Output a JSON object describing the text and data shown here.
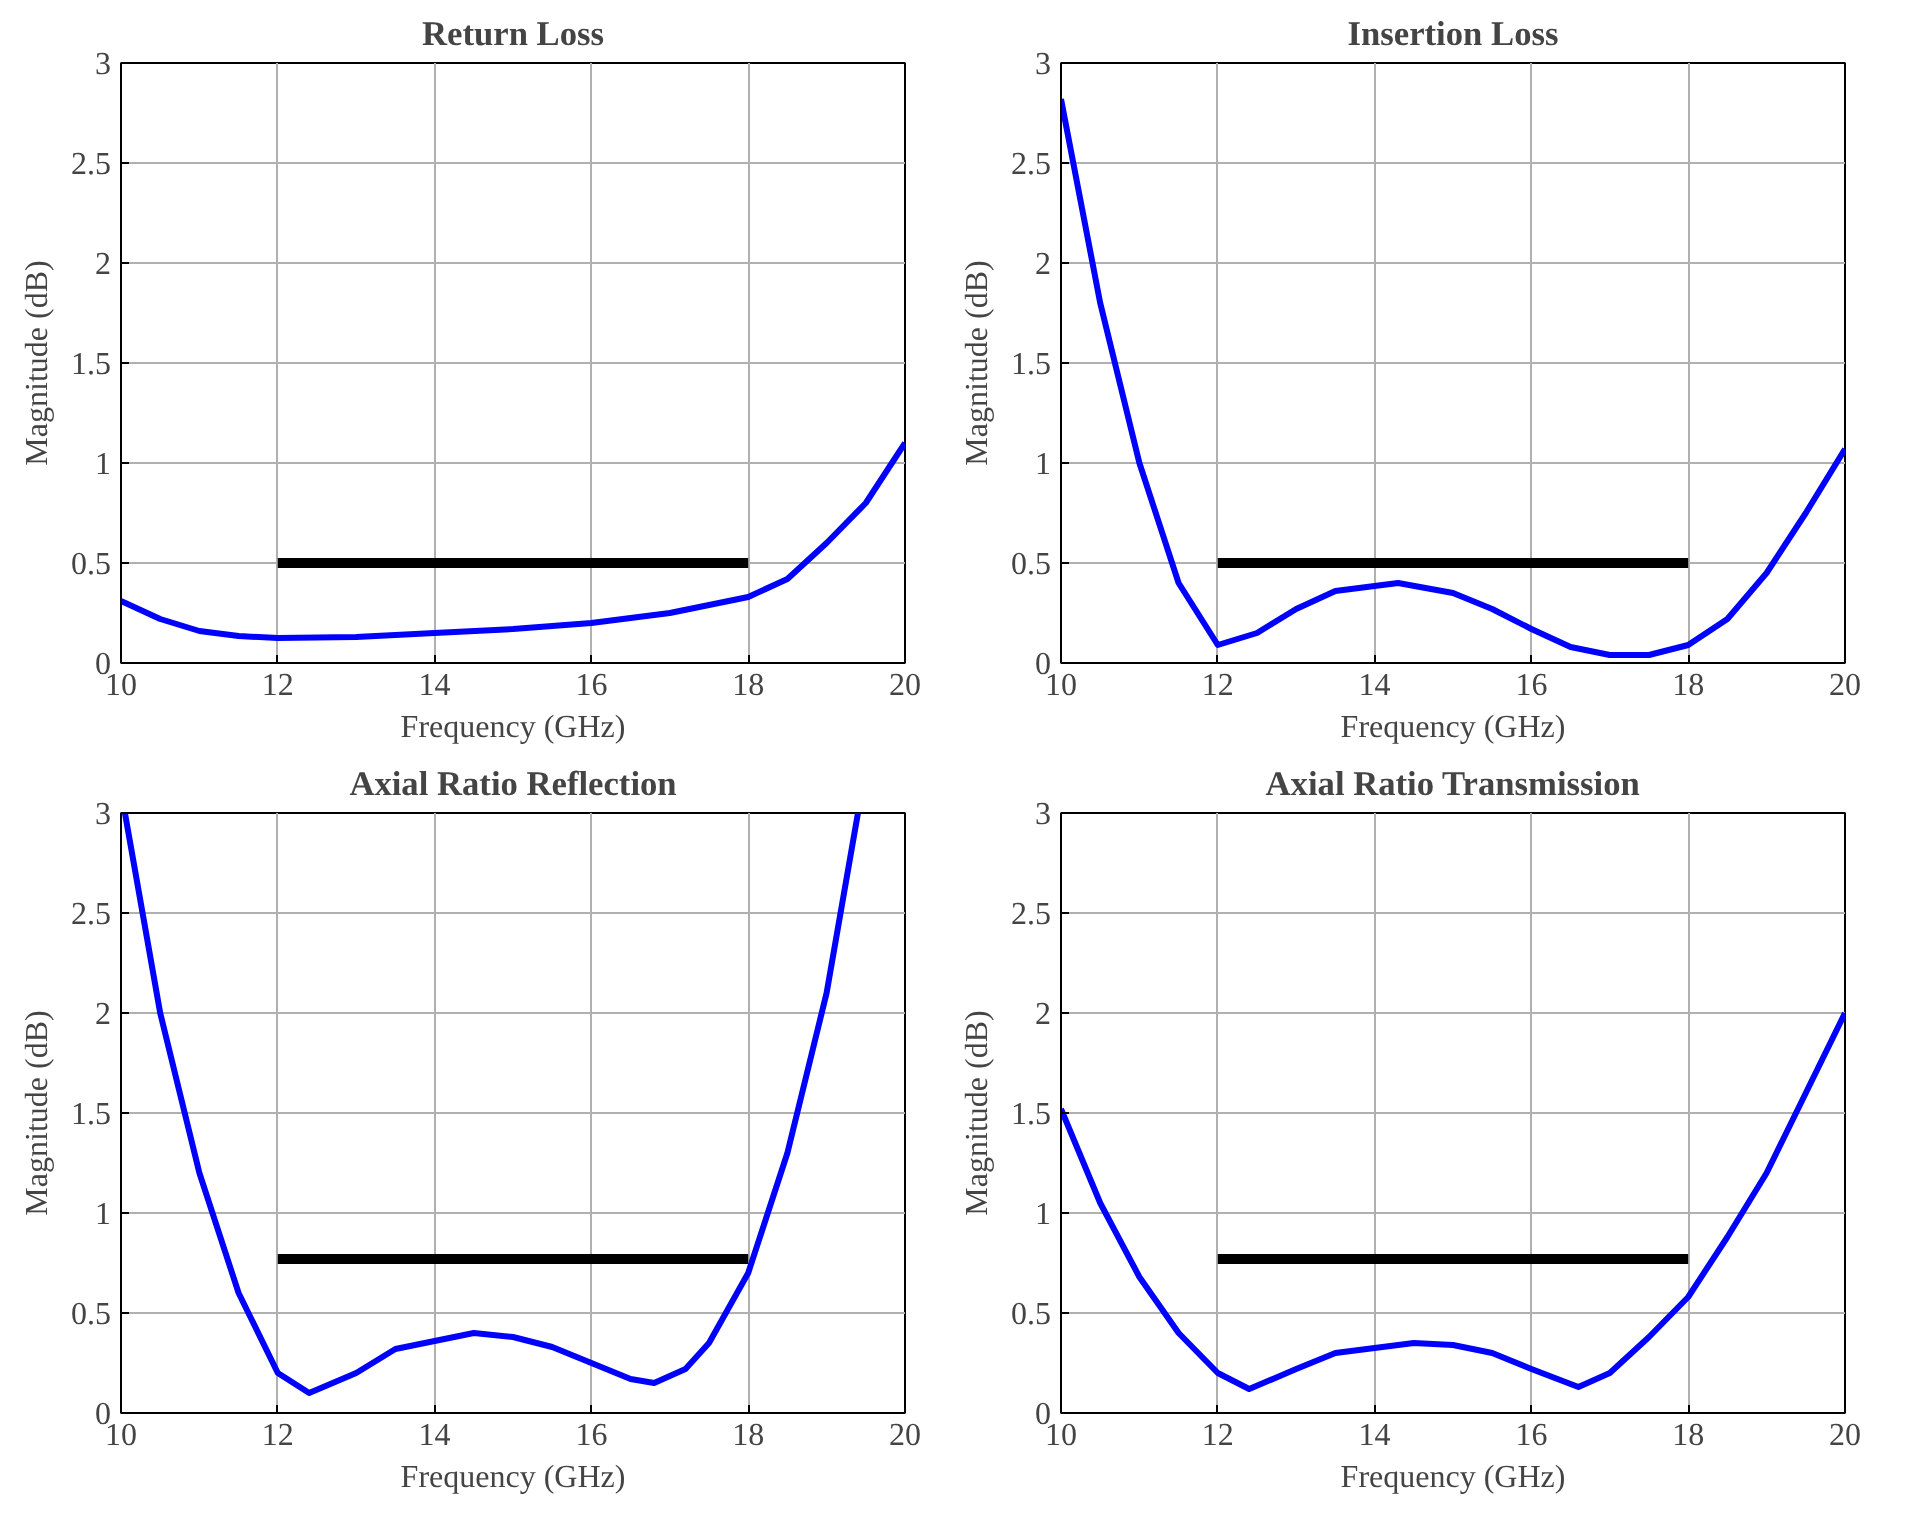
{
  "chart_data": [
    {
      "type": "line",
      "title": "Return Loss",
      "xlabel": "Frequency (GHz)",
      "ylabel": "Magnitude (dB)",
      "xlim": [
        10,
        20
      ],
      "ylim": [
        0,
        3
      ],
      "xticks": [
        10,
        12,
        14,
        16,
        18,
        20
      ],
      "yticks": [
        0,
        0.5,
        1,
        1.5,
        2,
        2.5,
        3
      ],
      "grid": true,
      "series": [
        {
          "color": "#0000ff",
          "x": [
            10,
            10.5,
            11,
            11.5,
            12,
            13,
            14,
            15,
            16,
            17,
            17.5,
            18,
            18.5,
            19,
            19.5,
            20
          ],
          "values": [
            0.31,
            0.22,
            0.16,
            0.135,
            0.125,
            0.13,
            0.15,
            0.17,
            0.2,
            0.25,
            0.29,
            0.33,
            0.42,
            0.6,
            0.8,
            1.1
          ]
        },
        {
          "color": "#000000",
          "x": [
            12,
            18
          ],
          "values": [
            0.5,
            0.5
          ]
        }
      ]
    },
    {
      "type": "line",
      "title": "Insertion Loss",
      "xlabel": "Frequency (GHz)",
      "ylabel": "Magnitude (dB)",
      "xlim": [
        10,
        20
      ],
      "ylim": [
        0,
        3
      ],
      "xticks": [
        10,
        12,
        14,
        16,
        18,
        20
      ],
      "yticks": [
        0,
        0.5,
        1,
        1.5,
        2,
        2.5,
        3
      ],
      "grid": true,
      "series": [
        {
          "color": "#0000ff",
          "x": [
            10,
            10.5,
            11,
            11.5,
            12,
            12.5,
            13,
            13.5,
            14.3,
            15,
            15.5,
            16,
            16.5,
            17,
            17.5,
            18,
            18.5,
            19,
            19.5,
            20
          ],
          "values": [
            2.82,
            1.8,
            1.0,
            0.4,
            0.09,
            0.15,
            0.27,
            0.36,
            0.4,
            0.35,
            0.27,
            0.17,
            0.08,
            0.04,
            0.04,
            0.09,
            0.22,
            0.45,
            0.75,
            1.07
          ]
        },
        {
          "color": "#000000",
          "x": [
            12,
            18
          ],
          "values": [
            0.5,
            0.5
          ]
        }
      ]
    },
    {
      "type": "line",
      "title": "Axial Ratio Reflection",
      "xlabel": "Frequency (GHz)",
      "ylabel": "Magnitude (dB)",
      "xlim": [
        10,
        20
      ],
      "ylim": [
        0,
        3
      ],
      "xticks": [
        10,
        12,
        14,
        16,
        18,
        20
      ],
      "yticks": [
        0,
        0.5,
        1,
        1.5,
        2,
        2.5,
        3
      ],
      "grid": true,
      "series": [
        {
          "color": "#0000ff",
          "x": [
            10.05,
            10.5,
            11,
            11.5,
            12,
            12.4,
            13,
            13.5,
            14.5,
            15,
            15.5,
            16,
            16.5,
            16.8,
            17.2,
            17.5,
            18,
            18.5,
            19,
            19.4
          ],
          "values": [
            3.0,
            2.0,
            1.2,
            0.6,
            0.2,
            0.1,
            0.2,
            0.32,
            0.4,
            0.38,
            0.33,
            0.25,
            0.17,
            0.15,
            0.22,
            0.35,
            0.7,
            1.3,
            2.1,
            3.0
          ]
        },
        {
          "color": "#000000",
          "x": [
            12,
            18
          ],
          "values": [
            0.77,
            0.77
          ]
        }
      ]
    },
    {
      "type": "line",
      "title": "Axial Ratio Transmission",
      "xlabel": "Frequency (GHz)",
      "ylabel": "Magnitude (dB)",
      "xlim": [
        10,
        20
      ],
      "ylim": [
        0,
        3
      ],
      "xticks": [
        10,
        12,
        14,
        16,
        18,
        20
      ],
      "yticks": [
        0,
        0.5,
        1,
        1.5,
        2,
        2.5,
        3
      ],
      "grid": true,
      "series": [
        {
          "color": "#0000ff",
          "x": [
            10,
            10.5,
            11,
            11.5,
            12,
            12.4,
            13,
            13.5,
            14.5,
            15,
            15.5,
            16,
            16.6,
            17,
            17.5,
            18,
            18.5,
            19,
            19.5,
            20
          ],
          "values": [
            1.52,
            1.05,
            0.68,
            0.4,
            0.2,
            0.12,
            0.22,
            0.3,
            0.35,
            0.34,
            0.3,
            0.22,
            0.13,
            0.2,
            0.38,
            0.58,
            0.88,
            1.2,
            1.6,
            2.0
          ]
        },
        {
          "color": "#000000",
          "x": [
            12,
            18
          ],
          "values": [
            0.77,
            0.77
          ]
        }
      ]
    }
  ]
}
